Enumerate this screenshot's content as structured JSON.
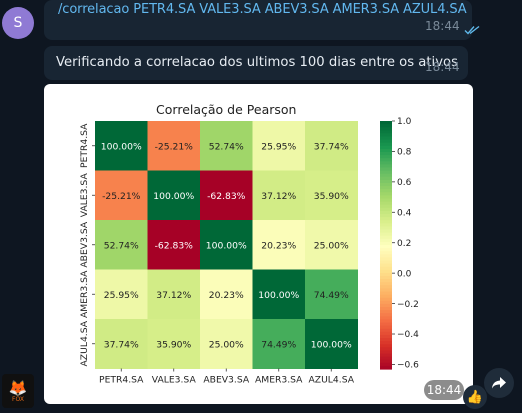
{
  "chat": {
    "avatar_letter": "S",
    "command_message": {
      "text": "/correlacao  PETR4.SA VALE3.SA ABEV3.SA AMER3.SA AZUL4.SA",
      "time": "18:44",
      "status_icon": "double-check-icon"
    },
    "reply_message": {
      "text": "Verificando a correlacao dos ultimos 100 dias entre os ativos",
      "time": "18:44"
    },
    "image_message": {
      "time": "18:44",
      "reaction": "👍",
      "share_icon": "share-arrow-icon",
      "sender_logo": {
        "glyph": "🦊",
        "text": "FOX"
      }
    }
  },
  "chart_data": {
    "type": "heatmap",
    "title": "Correlação de Pearson",
    "rows": [
      "PETR4.SA",
      "VALE3.SA",
      "ABEV3.SA",
      "AMER3.SA",
      "AZUL4.SA"
    ],
    "columns": [
      "PETR4.SA",
      "VALE3.SA",
      "ABEV3.SA",
      "AMER3.SA",
      "AZUL4.SA"
    ],
    "values": [
      [
        1.0,
        -0.2521,
        0.5274,
        0.2595,
        0.3774
      ],
      [
        -0.2521,
        1.0,
        -0.6283,
        0.3712,
        0.359
      ],
      [
        0.5274,
        -0.6283,
        1.0,
        0.2023,
        0.25
      ],
      [
        0.2595,
        0.3712,
        0.2023,
        1.0,
        0.7449
      ],
      [
        0.3774,
        0.359,
        0.25,
        0.7449,
        1.0
      ]
    ],
    "labels": [
      [
        "100.00%",
        "-25.21%",
        "52.74%",
        "25.95%",
        "37.74%"
      ],
      [
        "-25.21%",
        "100.00%",
        "-62.83%",
        "37.12%",
        "35.90%"
      ],
      [
        "52.74%",
        "-62.83%",
        "100.00%",
        "20.23%",
        "25.00%"
      ],
      [
        "25.95%",
        "37.12%",
        "20.23%",
        "100.00%",
        "74.49%"
      ],
      [
        "37.74%",
        "35.90%",
        "25.00%",
        "74.49%",
        "100.00%"
      ]
    ],
    "colormap": "RdYlGn",
    "vmin": -0.63,
    "vmax": 1.0,
    "colorbar_ticks": [
      1.0,
      0.8,
      0.6,
      0.4,
      0.2,
      0.0,
      -0.2,
      -0.4,
      -0.6
    ],
    "colorbar_tick_labels": [
      "1.0",
      "0.8",
      "0.6",
      "0.4",
      "0.2",
      "0.0",
      "−0.2",
      "−0.4",
      "−0.6"
    ]
  }
}
